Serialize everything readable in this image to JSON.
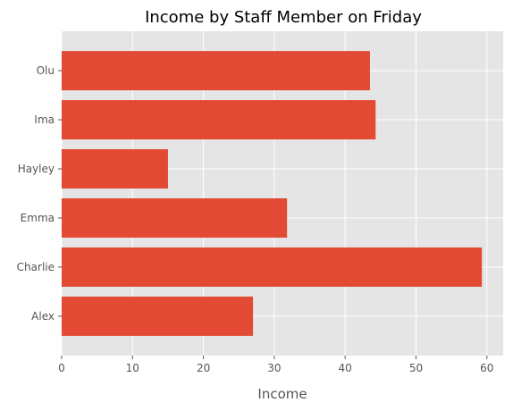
{
  "chart_data": {
    "type": "bar",
    "orientation": "horizontal",
    "title": "Income by Staff Member on Friday",
    "xlabel": "Income",
    "ylabel": "",
    "categories": [
      "Alex",
      "Charlie",
      "Emma",
      "Hayley",
      "Ima",
      "Olu"
    ],
    "values": [
      27,
      59.3,
      31.8,
      15,
      44.3,
      43.5
    ],
    "xlim": [
      0,
      62.3
    ],
    "xticks": [
      0,
      10,
      20,
      30,
      40,
      50,
      60
    ],
    "grid": true,
    "colors": {
      "bar": "#E24A33",
      "plot_background": "#E5E5E5",
      "grid": "#FFFFFF"
    }
  }
}
